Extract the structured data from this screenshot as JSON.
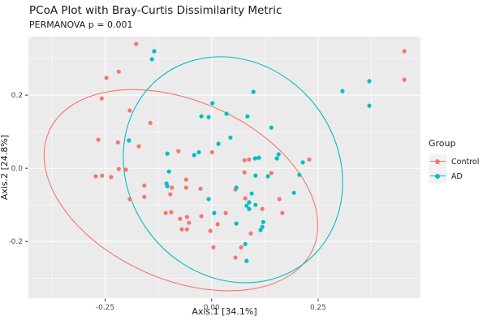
{
  "chart_data": {
    "type": "scatter",
    "title": "PCoA Plot with Bray-Curtis Dissimilarity Metric",
    "subtitle": "PERMANOVA p = 0.001",
    "xlabel": "Axis.1  [34.1%]",
    "ylabel": "Axis.2  [24.8%]",
    "xlim": [
      -0.43,
      0.49
    ],
    "ylim": [
      -0.355,
      0.36
    ],
    "x_ticks": {
      "values": [
        -0.25,
        0,
        0.25
      ],
      "labels": [
        "-0.25",
        "0.00",
        "0.25"
      ],
      "minor": [
        -0.375,
        -0.125,
        0.125,
        0.375
      ]
    },
    "y_ticks": {
      "values": [
        0.2,
        0,
        -0.2
      ],
      "labels": [
        "0.2",
        "0.0",
        "-0.2"
      ],
      "minor": [
        0.3,
        0.1,
        -0.1,
        -0.3
      ]
    },
    "grid": true,
    "legend_position": "right",
    "legend_title": "Group",
    "colors": {
      "control": "#F8766D",
      "ad": "#00BFC4",
      "panel_bg": "#EBEBEB",
      "gridline": "#FFFFFF",
      "tick_label": "#4D4D4D",
      "tick_mark": "#333333",
      "text": "#1A1A1A",
      "legend_key_bg": "#F2F2F2"
    },
    "series": [
      {
        "name": "Control",
        "color": "#F8766D",
        "points": [
          [
            -0.177,
            0.34
          ],
          [
            -0.218,
            0.264
          ],
          [
            -0.247,
            0.247
          ],
          [
            -0.258,
            0.191
          ],
          [
            -0.192,
            0.158
          ],
          [
            -0.144,
            0.124
          ],
          [
            -0.266,
            0.078
          ],
          [
            -0.22,
            0.071
          ],
          [
            -0.171,
            0.06
          ],
          [
            -0.078,
            0.047
          ],
          [
            0.001,
            0.044
          ],
          [
            0.452,
            0.32
          ],
          [
            0.452,
            0.242
          ],
          [
            0.077,
            0.022
          ],
          [
            0.088,
            0.024
          ],
          [
            0.229,
            0.024
          ],
          [
            -0.218,
            -0.002
          ],
          [
            -0.201,
            -0.004
          ],
          [
            -0.272,
            -0.022
          ],
          [
            -0.257,
            -0.02
          ],
          [
            -0.236,
            -0.024
          ],
          [
            -0.06,
            -0.031
          ],
          [
            -0.158,
            -0.047
          ],
          [
            -0.093,
            -0.053
          ],
          [
            -0.06,
            -0.053
          ],
          [
            -0.026,
            -0.056
          ],
          [
            -0.097,
            -0.071
          ],
          [
            -0.158,
            -0.078
          ],
          [
            -0.192,
            -0.084
          ],
          [
            -0.108,
            -0.122
          ],
          [
            -0.095,
            -0.12
          ],
          [
            -0.074,
            -0.138
          ],
          [
            -0.058,
            -0.133
          ],
          [
            -0.053,
            -0.149
          ],
          [
            -0.024,
            -0.131
          ],
          [
            0.014,
            -0.153
          ],
          [
            -0.07,
            -0.167
          ],
          [
            -0.058,
            -0.167
          ],
          [
            -0.003,
            -0.171
          ],
          [
            0.004,
            -0.216
          ],
          [
            0.077,
            -0.011
          ],
          [
            0.14,
            -0.013
          ],
          [
            0.056,
            -0.058
          ],
          [
            0.079,
            -0.082
          ],
          [
            0.159,
            -0.084
          ],
          [
            0.119,
            -0.111
          ],
          [
            0.033,
            -0.122
          ],
          [
            0.166,
            -0.122
          ],
          [
            0.092,
            -0.178
          ],
          [
            0.069,
            -0.216
          ],
          [
            0.056,
            -0.244
          ]
        ]
      },
      {
        "name": "AD",
        "color": "#00BFC4",
        "points": [
          [
            -0.135,
            0.32
          ],
          [
            -0.14,
            0.298
          ],
          [
            0.002,
            0.178
          ],
          [
            -0.024,
            0.142
          ],
          [
            -0.007,
            0.14
          ],
          [
            -0.194,
            0.076
          ],
          [
            -0.104,
            0.04
          ],
          [
            -0.041,
            0.036
          ],
          [
            -0.03,
            0.044
          ],
          [
            0.016,
            0.067
          ],
          [
            0.37,
            0.238
          ],
          [
            0.307,
            0.211
          ],
          [
            0.098,
            0.209
          ],
          [
            0.37,
            0.171
          ],
          [
            0.035,
            0.149
          ],
          [
            0.084,
            0.142
          ],
          [
            0.14,
            0.111
          ],
          [
            0.044,
            0.084
          ],
          [
            0.102,
            0.027
          ],
          [
            0.111,
            0.029
          ],
          [
            0.157,
            0.038
          ],
          [
            0.153,
            0.027
          ],
          [
            0.214,
            0.016
          ],
          [
            -0.1,
            -0.009
          ],
          [
            -0.106,
            -0.042
          ],
          [
            -0.104,
            -0.049
          ],
          [
            -0.007,
            -0.084
          ],
          [
            0.006,
            -0.122
          ],
          [
            0.103,
            -0.02
          ],
          [
            0.132,
            -0.022
          ],
          [
            0.206,
            -0.018
          ],
          [
            0.058,
            -0.053
          ],
          [
            0.094,
            -0.069
          ],
          [
            0.193,
            -0.067
          ],
          [
            0.088,
            -0.093
          ],
          [
            0.082,
            -0.102
          ],
          [
            0.103,
            -0.1
          ],
          [
            0.088,
            -0.111
          ],
          [
            0.058,
            -0.151
          ],
          [
            0.121,
            -0.147
          ],
          [
            0.119,
            -0.16
          ],
          [
            0.115,
            -0.169
          ],
          [
            0.079,
            -0.207
          ],
          [
            0.082,
            -0.253
          ]
        ]
      }
    ],
    "ellipses": [
      {
        "group": "Control",
        "color": "#F8766D",
        "center": [
          -0.072,
          -0.06
        ],
        "semi_axis_a_xunits": 0.339,
        "semi_axis_b_yunits": 0.244,
        "rotation_deg": 24
      },
      {
        "group": "AD",
        "color": "#00BFC4",
        "center": [
          0.05,
          -0.004
        ],
        "semi_axis_a_xunits": 0.276,
        "semi_axis_b_yunits": 0.286,
        "rotation_deg": 52
      }
    ]
  }
}
